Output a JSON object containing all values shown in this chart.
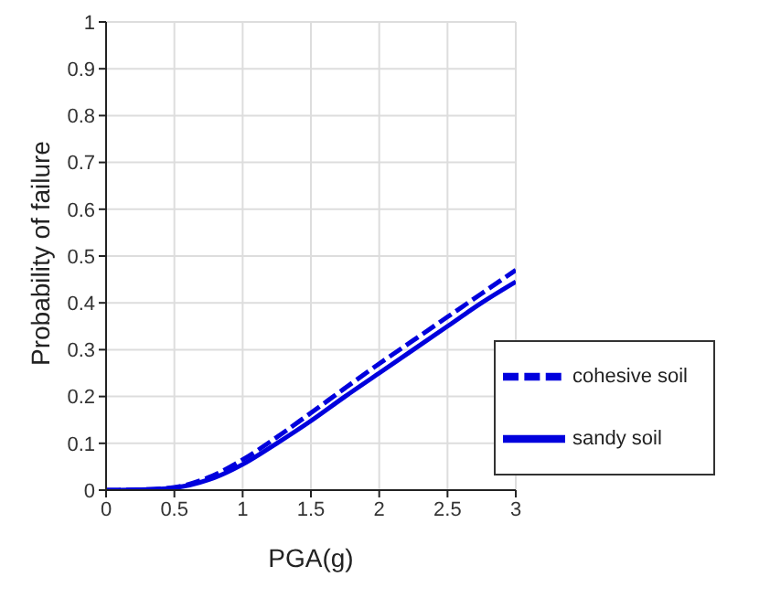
{
  "chart_data": {
    "type": "line",
    "xlabel": "PGA(g)",
    "ylabel": "Probability of failure",
    "x": [
      0,
      0.25,
      0.5,
      0.75,
      1,
      1.25,
      1.5,
      1.75,
      2,
      2.25,
      2.5,
      2.75,
      3
    ],
    "series": [
      {
        "name": "sandy soil",
        "color": "#0000dd",
        "line_style": "solid",
        "values": [
          0,
          0.001,
          0.005,
          0.022,
          0.055,
          0.1,
          0.148,
          0.2,
          0.25,
          0.3,
          0.35,
          0.4,
          0.445
        ]
      },
      {
        "name": "cohesive soil",
        "color": "#0000dd",
        "line_style": "dashed",
        "values": [
          0,
          0.001,
          0.006,
          0.027,
          0.065,
          0.113,
          0.165,
          0.218,
          0.27,
          0.32,
          0.37,
          0.42,
          0.47
        ]
      }
    ],
    "xlim": [
      0,
      3
    ],
    "xticks": [
      0,
      0.5,
      1,
      1.5,
      2,
      2.5,
      3
    ],
    "ylim": [
      0,
      1
    ],
    "yticks": [
      0,
      0.1,
      0.2,
      0.3,
      0.4,
      0.5,
      0.6,
      0.7,
      0.8,
      0.9,
      1
    ],
    "grid": true,
    "legend": "bottom right",
    "marker": "none"
  }
}
